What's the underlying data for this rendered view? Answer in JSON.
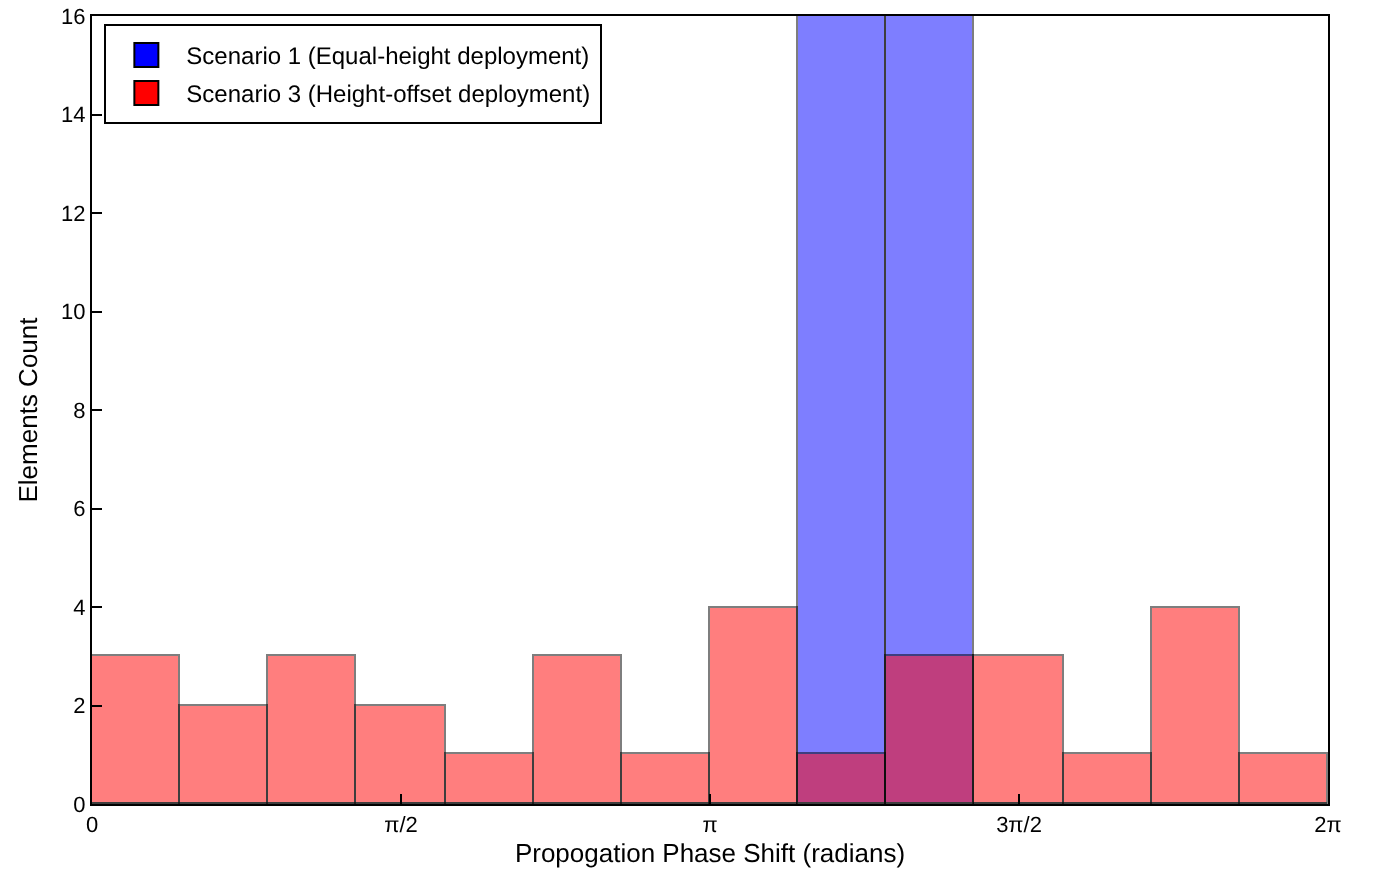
{
  "chart_data": {
    "type": "histogram",
    "xlabel": "Propogation Phase Shift (radians)",
    "ylabel": "Elements Count",
    "bins": [
      0,
      0.4488,
      0.8976,
      1.3464,
      1.7952,
      2.244,
      2.6928,
      3.1416,
      3.5904,
      4.0392,
      4.488,
      4.9368,
      5.3856,
      5.8344,
      6.2832
    ],
    "series": [
      {
        "name": "Scenario 1 (Equal-height deployment)",
        "color": "#0000ff",
        "values": [
          0,
          0,
          0,
          0,
          0,
          0,
          0,
          0,
          16,
          16,
          0,
          0,
          0,
          0
        ]
      },
      {
        "name": "Scenario 3 (Height-offset deployment)",
        "color": "#ff0000",
        "values": [
          3,
          2,
          3,
          2,
          1,
          3,
          1,
          4,
          1,
          3,
          3,
          1,
          4,
          1
        ]
      }
    ],
    "xlim": [
      0,
      6.2832
    ],
    "xticks": [
      0,
      {
        "value": 1.5708,
        "label": "π/2"
      },
      {
        "value": 3.1416,
        "label": "π"
      },
      {
        "value": 4.7124,
        "label": "3π/2"
      },
      {
        "value": 6.2832,
        "label": "2π"
      }
    ],
    "ylim": [
      0,
      16
    ],
    "yticks": [
      0,
      2,
      4,
      6,
      8,
      10,
      12,
      14,
      16
    ],
    "grid": false,
    "legend": "top left"
  }
}
